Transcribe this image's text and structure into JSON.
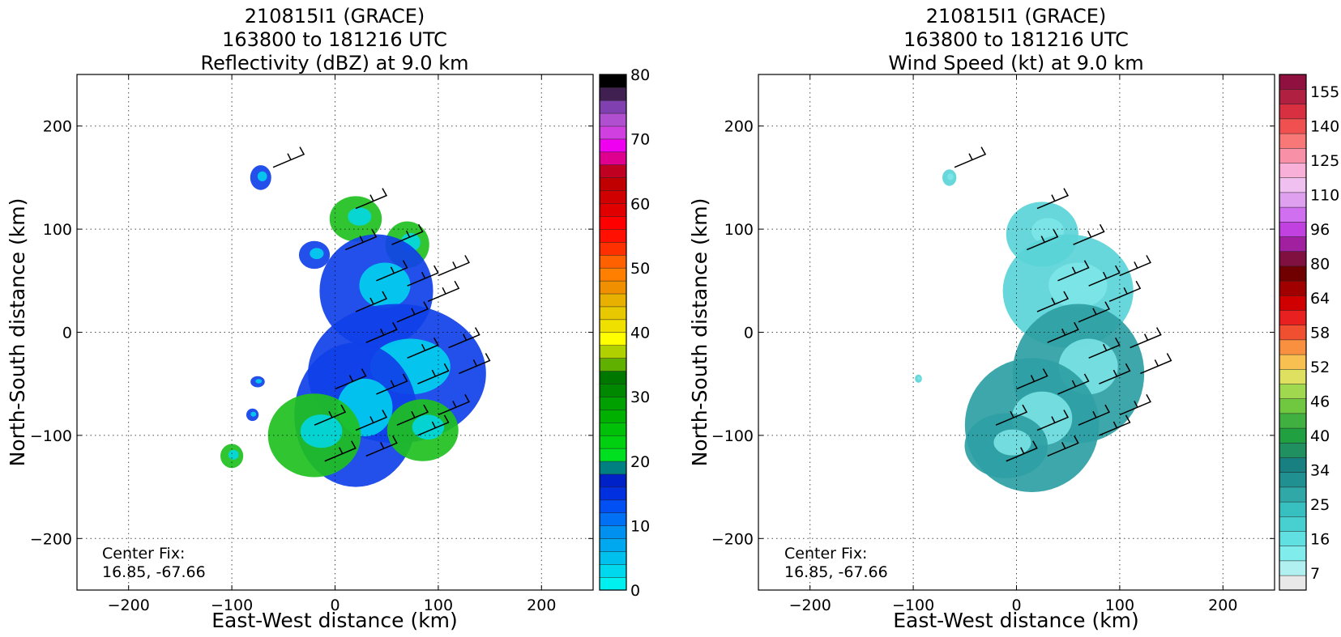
{
  "chart_data": [
    {
      "type": "heatmap",
      "title_lines": [
        "210815I1 (GRACE)",
        "163800 to 181216 UTC",
        "Reflectivity (dBZ) at 9.0 km"
      ],
      "xlabel": "East-West distance (km)",
      "ylabel": "North-South distance (km)",
      "xlim": [
        -250,
        250
      ],
      "ylim": [
        -250,
        250
      ],
      "xticks": [
        -200,
        -100,
        0,
        100,
        200
      ],
      "yticks": [
        -200,
        -100,
        0,
        100,
        200
      ],
      "xtick_labels": [
        "−200",
        "−100",
        "0",
        "100",
        "200"
      ],
      "ytick_labels": [
        "−200",
        "−100",
        "0",
        "100",
        "200"
      ],
      "grid": true,
      "annotation": [
        "Center Fix:",
        "16.85, -67.66"
      ],
      "colorbar": {
        "min": 0,
        "max": 80,
        "steps": 32,
        "tick_values": [
          0,
          10,
          20,
          30,
          40,
          50,
          60,
          70,
          80
        ],
        "tick_labels": [
          "0",
          "10",
          "20",
          "30",
          "40",
          "50",
          "60",
          "70",
          "80"
        ],
        "colors": [
          "#00f0f0",
          "#00d8ee",
          "#00c0ee",
          "#00a8f0",
          "#0090f0",
          "#0070f4",
          "#0050f4",
          "#0030e0",
          "#0020c8",
          "#008080",
          "#00e020",
          "#00d010",
          "#00c008",
          "#00b000",
          "#00a000",
          "#008800",
          "#007800",
          "#60b000",
          "#b0d000",
          "#ffff00",
          "#f0e000",
          "#e8c800",
          "#e8b000",
          "#f09000",
          "#ff8000",
          "#ff6000",
          "#ff3000",
          "#ff1000",
          "#ff0000",
          "#e00000",
          "#d00000",
          "#c00000",
          "#c00020",
          "#e00090",
          "#f000f0",
          "#d040e0",
          "#b050d0",
          "#8040b0",
          "#402050",
          "#000000"
        ]
      },
      "field_color": "#1040e8",
      "blobs": [
        {
          "cx": -72,
          "cy": 150,
          "r": 12,
          "level": "low"
        },
        {
          "cx": -20,
          "cy": 75,
          "r": 15,
          "level": "low"
        },
        {
          "cx": 20,
          "cy": 110,
          "r": 22,
          "level": "mid"
        },
        {
          "cx": 70,
          "cy": 85,
          "r": 25,
          "level": "mid"
        },
        {
          "cx": 40,
          "cy": 40,
          "r": 55,
          "level": "low"
        },
        {
          "cx": 60,
          "cy": -40,
          "r": 75,
          "level": "low"
        },
        {
          "cx": 20,
          "cy": -80,
          "r": 70,
          "level": "low"
        },
        {
          "cx": -20,
          "cy": -100,
          "r": 45,
          "level": "mid"
        },
        {
          "cx": 85,
          "cy": -95,
          "r": 30,
          "level": "mid"
        },
        {
          "cx": -100,
          "cy": -120,
          "r": 13,
          "level": "mid"
        },
        {
          "cx": -80,
          "cy": -80,
          "r": 6,
          "level": "low"
        },
        {
          "cx": -75,
          "cy": -48,
          "r": 6,
          "level": "low"
        }
      ]
    },
    {
      "type": "heatmap",
      "title_lines": [
        "210815I1 (GRACE)",
        "163800 to 181216 UTC",
        "Wind Speed (kt) at 9.0 km"
      ],
      "xlabel": "East-West distance (km)",
      "ylabel": "North-South distance (km)",
      "xlim": [
        -250,
        250
      ],
      "ylim": [
        -250,
        250
      ],
      "xticks": [
        -200,
        -100,
        0,
        100,
        200
      ],
      "yticks": [
        -200,
        -100,
        0,
        100,
        200
      ],
      "xtick_labels": [
        "−200",
        "−100",
        "0",
        "100",
        "200"
      ],
      "ytick_labels": [
        "−200",
        "−100",
        "0",
        "100",
        "200"
      ],
      "grid": true,
      "annotation": [
        "Center Fix:",
        "16.85, -67.66"
      ],
      "colorbar": {
        "min": 0,
        "max": 160,
        "steps": 30,
        "tick_values": [
          7,
          16,
          25,
          34,
          40,
          46,
          52,
          58,
          64,
          80,
          96,
          110,
          125,
          140,
          155
        ],
        "tick_labels": [
          "7",
          "16",
          "25",
          "34",
          "40",
          "46",
          "52",
          "58",
          "64",
          "80",
          "96",
          "110",
          "125",
          "140",
          "155"
        ],
        "colors": [
          "#e8e8e8",
          "#b0f0f0",
          "#80ecec",
          "#60e0e0",
          "#48d0d0",
          "#38c0c0",
          "#30a8a8",
          "#209090",
          "#188080",
          "#209060",
          "#20a040",
          "#40b040",
          "#70c840",
          "#a0d850",
          "#e0e060",
          "#f8c050",
          "#f89040",
          "#f05030",
          "#e82020",
          "#d00000",
          "#a00000",
          "#700000",
          "#801040",
          "#a020a0",
          "#c040e0",
          "#d070f0",
          "#e0a0f0",
          "#f0c0f0",
          "#f8b0d8",
          "#f890a8",
          "#f87878",
          "#f05050",
          "#d83040",
          "#b02040",
          "#901040"
        ]
      },
      "field_color": "#5ad4d8",
      "blobs": [
        {
          "cx": -65,
          "cy": 150,
          "r": 8,
          "level": "low"
        },
        {
          "cx": 25,
          "cy": 95,
          "r": 35,
          "level": "low"
        },
        {
          "cx": 50,
          "cy": 40,
          "r": 55,
          "level": "low"
        },
        {
          "cx": 60,
          "cy": -40,
          "r": 75,
          "level": "mid"
        },
        {
          "cx": 15,
          "cy": -90,
          "r": 65,
          "level": "mid"
        },
        {
          "cx": -10,
          "cy": -110,
          "r": 35,
          "level": "mid"
        },
        {
          "cx": -95,
          "cy": -45,
          "r": 4,
          "level": "low"
        }
      ]
    }
  ]
}
